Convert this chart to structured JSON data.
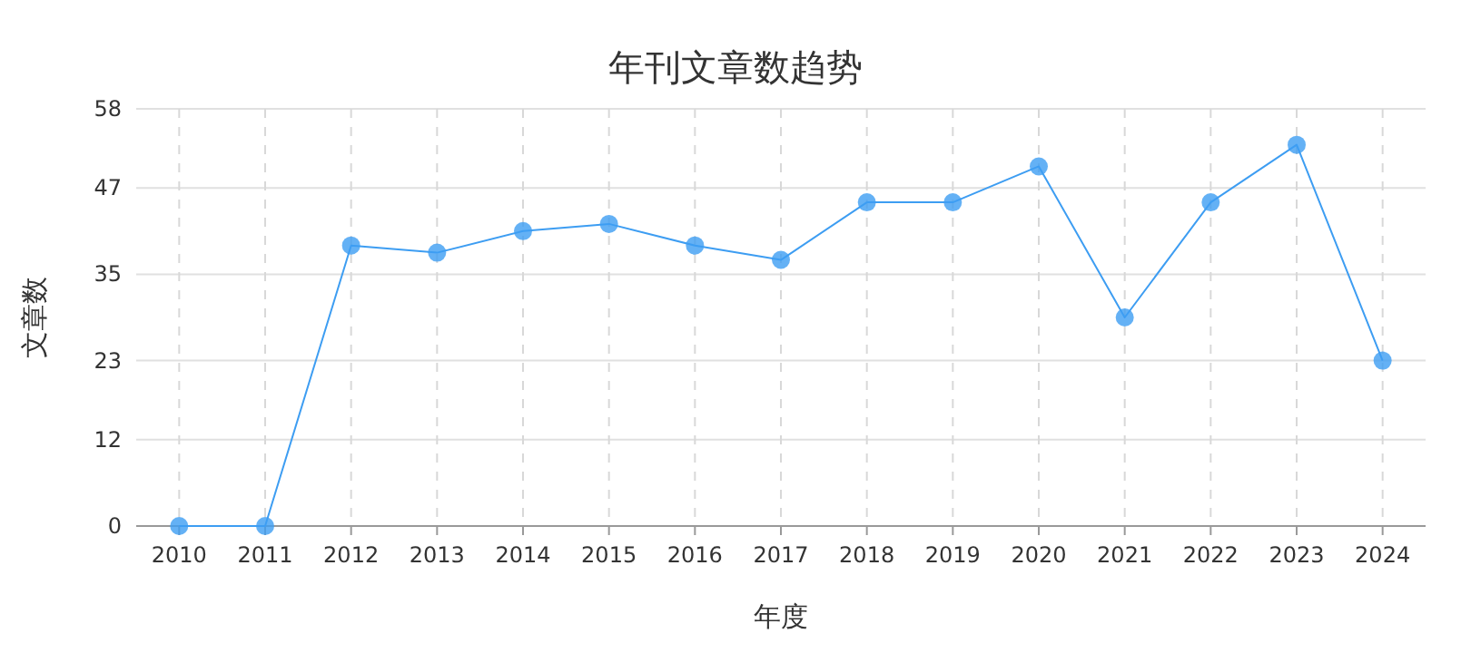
{
  "chart_data": {
    "type": "line",
    "title": "年刊文章数趋势",
    "xlabel": "年度",
    "ylabel": "文章数",
    "categories": [
      "2010",
      "2011",
      "2012",
      "2013",
      "2014",
      "2015",
      "2016",
      "2017",
      "2018",
      "2019",
      "2020",
      "2021",
      "2022",
      "2023",
      "2024"
    ],
    "series": [
      {
        "color": "#3d9df2",
        "values": [
          0,
          0,
          39,
          38,
          41,
          42,
          39,
          37,
          45,
          45,
          50,
          29,
          45,
          53,
          23
        ]
      }
    ],
    "ylim": [
      0,
      58
    ],
    "yticks": [
      0,
      12,
      23,
      35,
      47,
      58
    ],
    "grid": true,
    "marker": "circle",
    "line_style": "solid"
  }
}
